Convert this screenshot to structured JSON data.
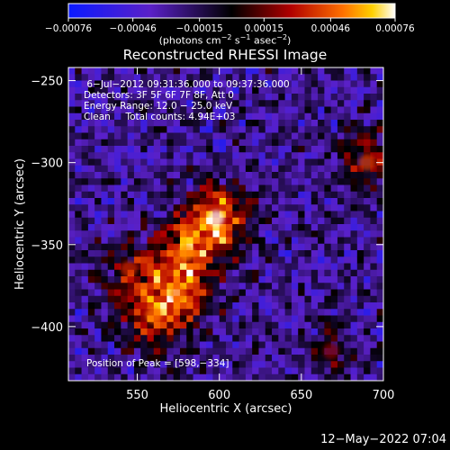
{
  "chart_data": {
    "type": "heatmap",
    "title": "Reconstructed RHESSI Image",
    "xlabel": "Heliocentric X (arcsec)",
    "ylabel": "Heliocentric Y (arcsec)",
    "xlim": [
      508,
      700
    ],
    "ylim": [
      -433,
      -242
    ],
    "xticks": [
      550,
      600,
      650,
      700
    ],
    "xtick_labels": [
      "550",
      "600",
      "650",
      "700"
    ],
    "yticks": [
      -250,
      -300,
      -350,
      -400
    ],
    "ytick_labels": [
      "−250",
      "−300",
      "−350",
      "−400"
    ],
    "colorbar": {
      "ticks": [
        -0.00076,
        -0.00046,
        -0.00015,
        0.00015,
        0.00046,
        0.00076
      ],
      "tick_labels": [
        "−0.00076",
        "−0.00046",
        "−0.00015",
        "0.00015",
        "0.00046",
        "0.00076"
      ],
      "unit_text": "(photons cm",
      "unit_sup1": "−2",
      "unit_mid": " s",
      "unit_sup2": "−1",
      "unit_end": " asec",
      "unit_sup3": "−2",
      "unit_close": ")",
      "range": [
        -0.00076,
        0.00076
      ],
      "colors": [
        "#0a1aff",
        "#5a20c8",
        "#000000",
        "#b00000",
        "#ff7000",
        "#ffffff"
      ]
    },
    "annotations": [
      " 6−Jul−2012 09:31:36.000 to 09:37:36.000",
      "Detectors: 3F 5F 6F 7F 8F, Att 0",
      "Energy Range: 12.0 − 25.0 keV",
      "Clean     Total counts: 4.94E+03",
      "Position of Peak = [598,−334]"
    ],
    "peak": [
      598,
      -334
    ],
    "sources": [
      {
        "x": 598,
        "y": -334,
        "value": 0.00076
      },
      {
        "x": 580,
        "y": -355,
        "value": 0.00055
      },
      {
        "x": 575,
        "y": -380,
        "value": 0.0005
      },
      {
        "x": 560,
        "y": -393,
        "value": 0.00052
      },
      {
        "x": 545,
        "y": -365,
        "value": 0.00035
      },
      {
        "x": 690,
        "y": -300,
        "value": 0.0004
      },
      {
        "x": 668,
        "y": -415,
        "value": 0.0002
      }
    ]
  },
  "footer": {
    "timestamp": "12−May−2022 07:04"
  }
}
